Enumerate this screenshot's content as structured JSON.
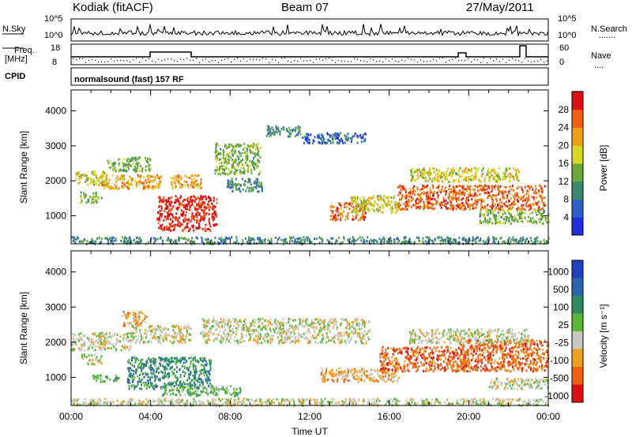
{
  "header": {
    "station": "Kodiak (fitACF)",
    "beam": "Beam 07",
    "date": "27/May/2011",
    "cpid_label": "CPID",
    "program": "normalsound (fast) 157 RF"
  },
  "strips": {
    "nsky_label": "N.Sky",
    "nsearch_label": "N.Search",
    "nsearch_dots": ".......",
    "freq_label": "Freq.",
    "freq_unit": "[MHz]",
    "nave_label": "Nave",
    "nave_dots": "....",
    "noise_ticks": [
      "10^5",
      "10^0"
    ],
    "freq_ticks": [
      "18",
      "8"
    ],
    "nave_ticks": [
      "60",
      "0"
    ]
  },
  "chart_data": [
    {
      "type": "heatmap",
      "panel": "power",
      "xlabel": "",
      "ylabel": "Slant Range [km]",
      "xlim": [
        0,
        24
      ],
      "ylim": [
        200,
        4600
      ],
      "y_ticks": [
        "1000",
        "2000",
        "3000",
        "4000"
      ],
      "colorbar": {
        "label": "Power [dB]",
        "ticks": [
          "4",
          "8",
          "12",
          "16",
          "20",
          "24",
          "28"
        ],
        "colors": [
          "#1f2fe0",
          "#2f5fc8",
          "#3c8a6e",
          "#6aaa3c",
          "#d8d820",
          "#f0a010",
          "#f06010",
          "#e01010"
        ]
      },
      "echo_regions": [
        {
          "t0": 0.0,
          "t1": 24.0,
          "r0": 220,
          "r1": 420,
          "level": 2
        },
        {
          "t0": 0.2,
          "t1": 1.8,
          "r0": 1900,
          "r1": 2300,
          "level": 4
        },
        {
          "t0": 0.4,
          "t1": 1.5,
          "r0": 1400,
          "r1": 1700,
          "level": 3
        },
        {
          "t0": 1.5,
          "t1": 4.5,
          "r0": 1800,
          "r1": 2200,
          "level": 5
        },
        {
          "t0": 1.8,
          "t1": 4.0,
          "r0": 2300,
          "r1": 2700,
          "level": 3
        },
        {
          "t0": 4.3,
          "t1": 7.3,
          "r0": 600,
          "r1": 1600,
          "level": 7
        },
        {
          "t0": 5.0,
          "t1": 6.5,
          "r0": 1800,
          "r1": 2200,
          "level": 5
        },
        {
          "t0": 7.2,
          "t1": 9.5,
          "r0": 2200,
          "r1": 3100,
          "level": 3
        },
        {
          "t0": 7.8,
          "t1": 9.6,
          "r0": 1700,
          "r1": 2100,
          "level": 2
        },
        {
          "t0": 9.8,
          "t1": 11.5,
          "r0": 3300,
          "r1": 3600,
          "level": 2
        },
        {
          "t0": 11.6,
          "t1": 14.8,
          "r0": 3100,
          "r1": 3400,
          "level": 1
        },
        {
          "t0": 13.0,
          "t1": 14.8,
          "r0": 900,
          "r1": 1400,
          "level": 6
        },
        {
          "t0": 14.0,
          "t1": 16.5,
          "r0": 1100,
          "r1": 1600,
          "level": 4
        },
        {
          "t0": 16.4,
          "t1": 23.8,
          "r0": 1200,
          "r1": 1900,
          "level": 6
        },
        {
          "t0": 17.0,
          "t1": 22.5,
          "r0": 2000,
          "r1": 2400,
          "level": 4
        },
        {
          "t0": 20.5,
          "t1": 24.0,
          "r0": 800,
          "r1": 1200,
          "level": 3
        }
      ]
    },
    {
      "type": "heatmap",
      "panel": "velocity",
      "xlabel": "Time UT",
      "ylabel": "Slant Range [km]",
      "xlim": [
        0,
        24
      ],
      "ylim": [
        200,
        4600
      ],
      "x_ticks": [
        "00:00",
        "04:00",
        "08:00",
        "12:00",
        "16:00",
        "20:00",
        "00:00"
      ],
      "y_ticks": [
        "1000",
        "2000",
        "3000",
        "4000"
      ],
      "colorbar": {
        "label": "Velocity [m s⁻¹]",
        "ticks": [
          "1000",
          "500",
          "100",
          "25",
          "-25",
          "-100",
          "-500",
          "-1000"
        ],
        "colors": [
          "#2040c0",
          "#2a66b0",
          "#2f8a60",
          "#58b83a",
          "#c8c8c0",
          "#f0a020",
          "#f06010",
          "#e01010"
        ]
      },
      "echo_regions": [
        {
          "t0": 0.0,
          "t1": 24.0,
          "r0": 220,
          "r1": 420,
          "level": 4
        },
        {
          "t0": 0.0,
          "t1": 3.0,
          "r0": 1800,
          "r1": 2300,
          "level": 4
        },
        {
          "t0": 0.5,
          "t1": 1.5,
          "r0": 1400,
          "r1": 1700,
          "level": 4
        },
        {
          "t0": 2.5,
          "t1": 3.8,
          "r0": 2500,
          "r1": 2900,
          "level": 5
        },
        {
          "t0": 3.0,
          "t1": 6.0,
          "r0": 2000,
          "r1": 2500,
          "level": 4
        },
        {
          "t0": 2.8,
          "t1": 7.0,
          "r0": 700,
          "r1": 1600,
          "level": 2
        },
        {
          "t0": 1.0,
          "t1": 2.5,
          "r0": 900,
          "r1": 1100,
          "level": 3
        },
        {
          "t0": 4.5,
          "t1": 8.5,
          "r0": 500,
          "r1": 800,
          "level": 3
        },
        {
          "t0": 6.5,
          "t1": 15.0,
          "r0": 2000,
          "r1": 2700,
          "level": 4
        },
        {
          "t0": 12.5,
          "t1": 16.5,
          "r0": 900,
          "r1": 1300,
          "level": 5
        },
        {
          "t0": 15.5,
          "t1": 20.0,
          "r0": 1200,
          "r1": 1900,
          "level": 6
        },
        {
          "t0": 19.5,
          "t1": 24.0,
          "r0": 1200,
          "r1": 2100,
          "level": 6
        },
        {
          "t0": 17.0,
          "t1": 23.0,
          "r0": 2000,
          "r1": 2400,
          "level": 4
        },
        {
          "t0": 21.0,
          "t1": 24.0,
          "r0": 700,
          "r1": 1000,
          "level": 4
        }
      ]
    }
  ]
}
